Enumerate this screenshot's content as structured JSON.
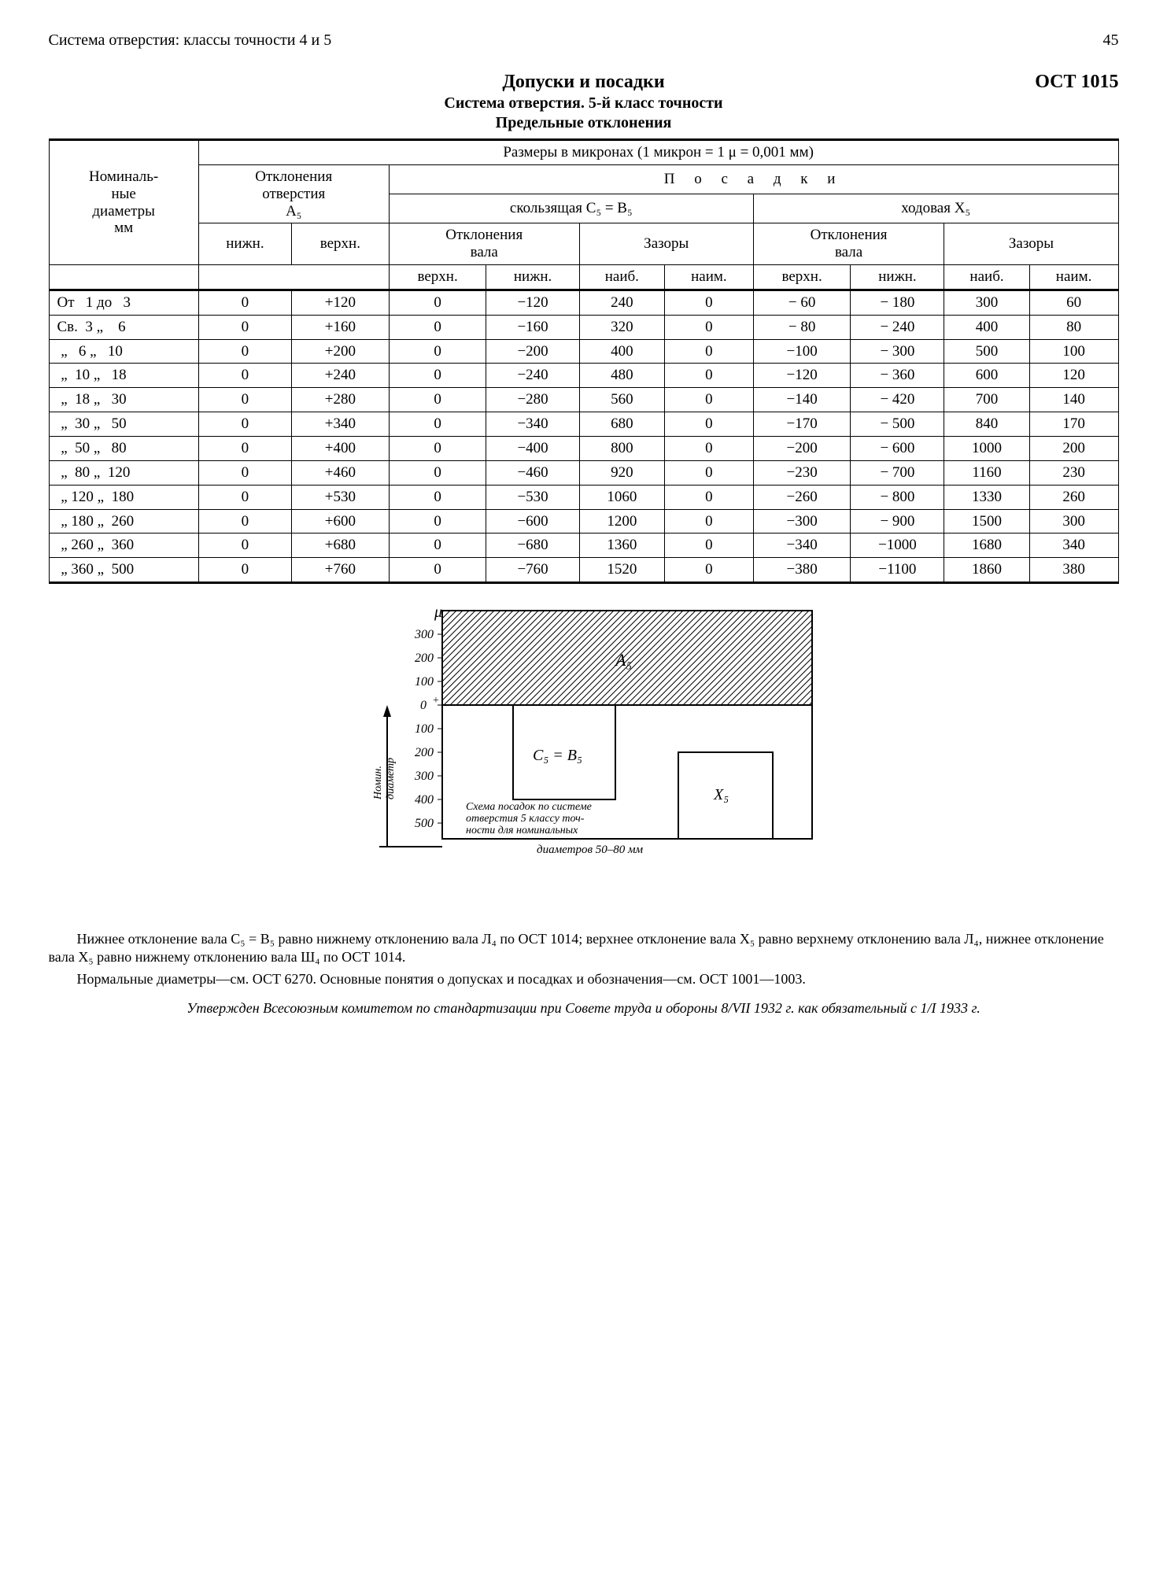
{
  "page": {
    "running_head": "Система отверстия: классы точности 4 и 5",
    "page_number": "45",
    "standard_code": "ОСТ 1015",
    "title_main": "Допуски и посадки",
    "title_sub": "Система отверстия. 5-й класс точности",
    "title_sub2": "Предельные отклонения"
  },
  "table": {
    "caption_units": "Размеры в микронах (1 микрон = 1 μ = 0,001 мм)",
    "head": {
      "col_nominal": "Номиналь-\nные\nдиаметры\nмм",
      "col_hole_dev": "Отклонения\nотверстия\nA₅",
      "fits_group": "П о с а д к и",
      "fit_slide": "скользящая C₅ = B₅",
      "fit_run": "ходовая X₅",
      "sub_shaft_dev": "Отклонения\nвала",
      "sub_clearance": "Зазоры",
      "low": "нижн.",
      "up": "верхн.",
      "max": "наиб.",
      "min": "наим."
    },
    "rows": [
      {
        "range": "От   1 до   3",
        "A_lo": "0",
        "A_up": "+120",
        "S1_up": "0",
        "S1_lo": "−120",
        "S1_max": "240",
        "S1_min": "0",
        "X_up": "− 60",
        "X_lo": "− 180",
        "X_max": "300",
        "X_min": "60"
      },
      {
        "range": "Св.  3 „    6",
        "A_lo": "0",
        "A_up": "+160",
        "S1_up": "0",
        "S1_lo": "−160",
        "S1_max": "320",
        "S1_min": "0",
        "X_up": "− 80",
        "X_lo": "− 240",
        "X_max": "400",
        "X_min": "80"
      },
      {
        "range": " „   6 „   10",
        "A_lo": "0",
        "A_up": "+200",
        "S1_up": "0",
        "S1_lo": "−200",
        "S1_max": "400",
        "S1_min": "0",
        "X_up": "−100",
        "X_lo": "− 300",
        "X_max": "500",
        "X_min": "100"
      },
      {
        "range": " „  10 „   18",
        "A_lo": "0",
        "A_up": "+240",
        "S1_up": "0",
        "S1_lo": "−240",
        "S1_max": "480",
        "S1_min": "0",
        "X_up": "−120",
        "X_lo": "− 360",
        "X_max": "600",
        "X_min": "120"
      },
      {
        "range": " „  18 „   30",
        "A_lo": "0",
        "A_up": "+280",
        "S1_up": "0",
        "S1_lo": "−280",
        "S1_max": "560",
        "S1_min": "0",
        "X_up": "−140",
        "X_lo": "− 420",
        "X_max": "700",
        "X_min": "140"
      },
      {
        "range": " „  30 „   50",
        "A_lo": "0",
        "A_up": "+340",
        "S1_up": "0",
        "S1_lo": "−340",
        "S1_max": "680",
        "S1_min": "0",
        "X_up": "−170",
        "X_lo": "− 500",
        "X_max": "840",
        "X_min": "170"
      },
      {
        "range": " „  50 „   80",
        "A_lo": "0",
        "A_up": "+400",
        "S1_up": "0",
        "S1_lo": "−400",
        "S1_max": "800",
        "S1_min": "0",
        "X_up": "−200",
        "X_lo": "− 600",
        "X_max": "1000",
        "X_min": "200"
      },
      {
        "range": " „  80 „  120",
        "A_lo": "0",
        "A_up": "+460",
        "S1_up": "0",
        "S1_lo": "−460",
        "S1_max": "920",
        "S1_min": "0",
        "X_up": "−230",
        "X_lo": "− 700",
        "X_max": "1160",
        "X_min": "230"
      },
      {
        "range": " „ 120 „  180",
        "A_lo": "0",
        "A_up": "+530",
        "S1_up": "0",
        "S1_lo": "−530",
        "S1_max": "1060",
        "S1_min": "0",
        "X_up": "−260",
        "X_lo": "− 800",
        "X_max": "1330",
        "X_min": "260"
      },
      {
        "range": " „ 180 „  260",
        "A_lo": "0",
        "A_up": "+600",
        "S1_up": "0",
        "S1_lo": "−600",
        "S1_max": "1200",
        "S1_min": "0",
        "X_up": "−300",
        "X_lo": "− 900",
        "X_max": "1500",
        "X_min": "300"
      },
      {
        "range": " „ 260 „  360",
        "A_lo": "0",
        "A_up": "+680",
        "S1_up": "0",
        "S1_lo": "−680",
        "S1_max": "1360",
        "S1_min": "0",
        "X_up": "−340",
        "X_lo": "−1000",
        "X_max": "1680",
        "X_min": "340"
      },
      {
        "range": " „ 360 „  500",
        "A_lo": "0",
        "A_up": "+760",
        "S1_up": "0",
        "S1_lo": "−760",
        "S1_max": "1520",
        "S1_min": "0",
        "X_up": "−380",
        "X_lo": "−1100",
        "X_max": "1860",
        "X_min": "380"
      }
    ]
  },
  "diagram": {
    "mu": "μ",
    "yticks_pos": [
      "300",
      "200",
      "100",
      "0"
    ],
    "zero_plus": "+",
    "yticks_neg": [
      "100",
      "200",
      "300",
      "400",
      "500"
    ],
    "A_label": "A₅",
    "CB_label": "C₅ = B₅",
    "X_label": "X₅",
    "caption_l1": "Схема посадок по системе",
    "caption_l2": "отверстия 5 классу точ-",
    "caption_l3": "ности для номинальных",
    "caption_bottom": "диаметров 50–80 мм",
    "side_top": "Номин.",
    "side_bot": "диаметр"
  },
  "notes": {
    "p1": "Нижнее отклонение вала C₅ = B₅ равно нижнему отклонению вала Л₄ по ОСТ 1014; верхнее отклонение вала X₅ равно верхнему отклонению вала Л₄, нижнее отклонение вала X₅ равно нижнему отклонению вала Ш₄ по ОСТ 1014.",
    "p2": "Нормальные диаметры—см. ОСТ 6270. Основные понятия о допусках и посадках и обозначения—см. ОСТ 1001—1003.",
    "approval": "Утвержден Всесоюзным комитетом по стандартизации при Совете труда и обороны 8/VII 1932 г. как обязательный с 1/I 1933 г."
  }
}
